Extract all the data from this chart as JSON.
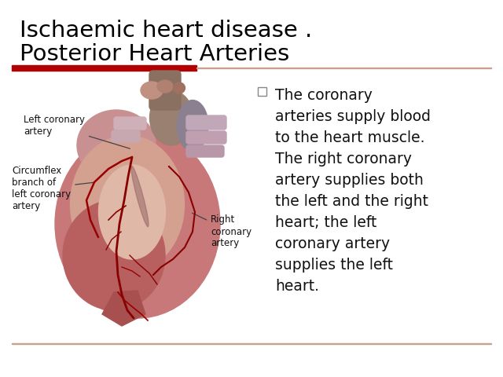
{
  "title_line1": "Ischaemic heart disease .",
  "title_line2": "Posterior Heart Arteries",
  "bg_color": "#ffffff",
  "title_color": "#000000",
  "red_bar_color": "#b30000",
  "thin_line_color": "#c8a090",
  "body_text_color": "#111111",
  "title_fontsize": 21,
  "body_fontsize": 13.5,
  "label_fontsize": 8.5,
  "bullet_lines": [
    "The coronary",
    "arteries supply blood",
    "to the heart muscle.",
    "The right coronary",
    "artery supplies both",
    "the left and the right",
    "heart; the left",
    "coronary artery",
    "supplies the left",
    "heart."
  ],
  "label_left_coronary": "Left coronary\nartery",
  "label_circumflex": "Circumflex\nbranch of\nleft coronary\nartery",
  "label_right_coronary": "Right\ncoronary\nartery"
}
